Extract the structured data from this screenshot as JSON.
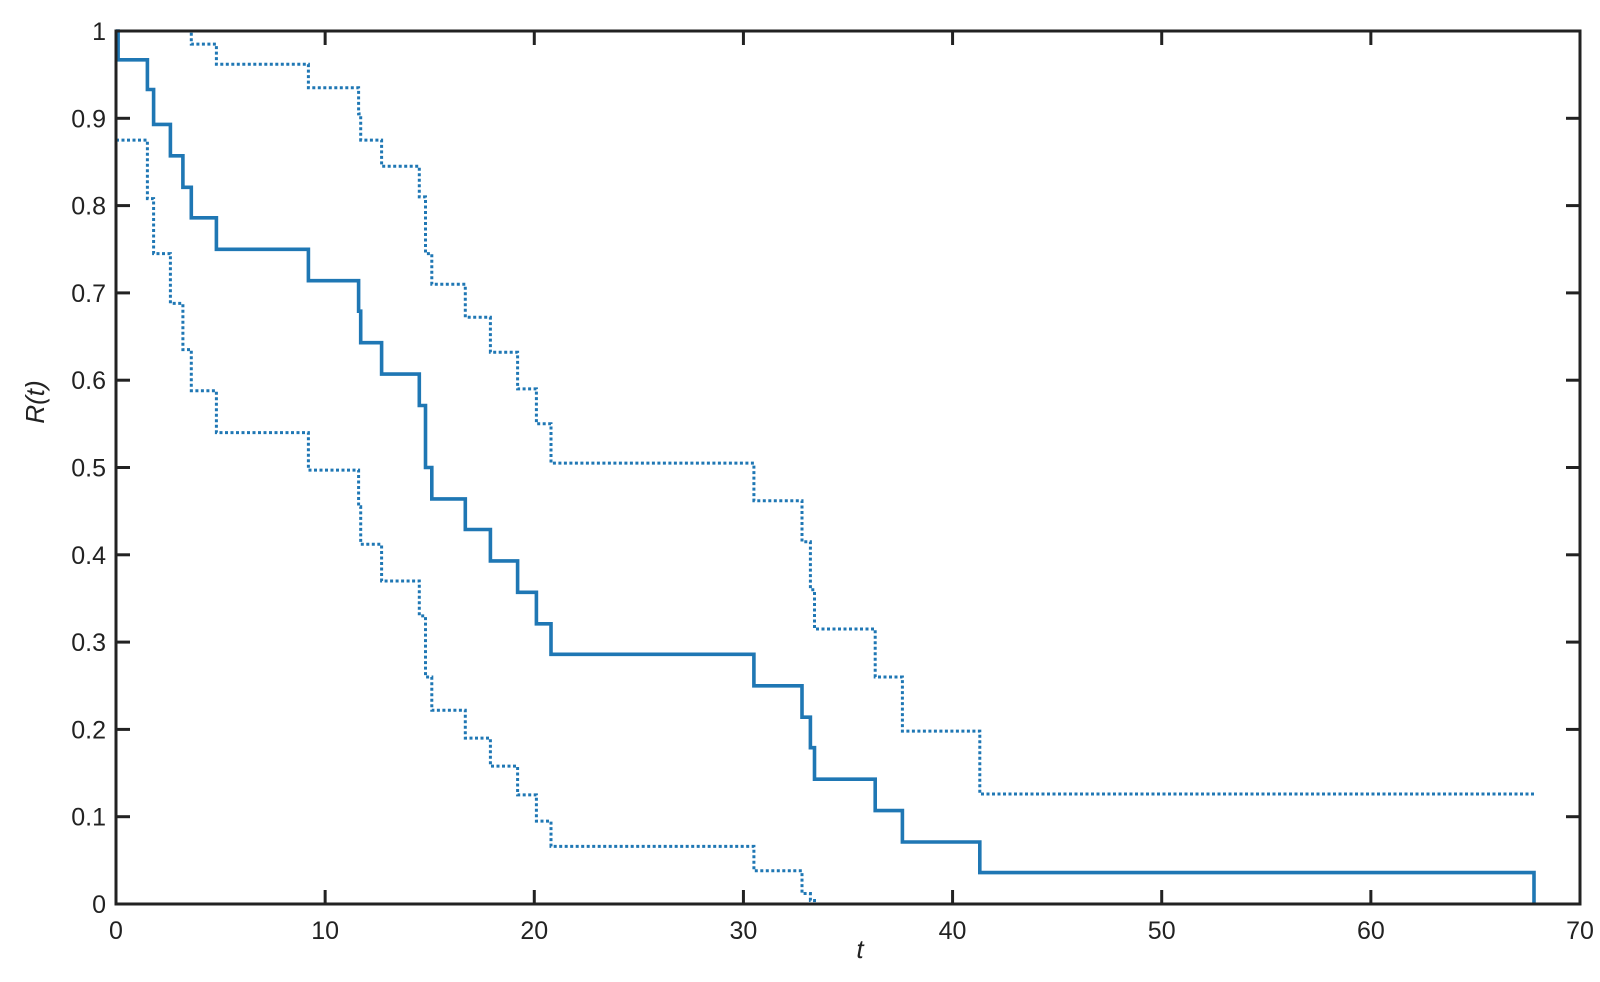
{
  "chart_data": {
    "type": "line",
    "title": "",
    "xlabel": "t",
    "ylabel": "R(t)",
    "xlim": [
      0,
      70
    ],
    "ylim": [
      0,
      1
    ],
    "x_ticks": [
      "0",
      "10",
      "20",
      "30",
      "40",
      "50",
      "60",
      "70"
    ],
    "y_ticks": [
      "0",
      "0.1",
      "0.2",
      "0.3",
      "0.4",
      "0.5",
      "0.6",
      "0.7",
      "0.8",
      "0.9",
      "1"
    ],
    "grid": false,
    "legend": "none",
    "step": true,
    "colors": {
      "series": "#1f77b4",
      "axis": "#222222"
    },
    "series": [
      {
        "style": "solid",
        "x": [
          0,
          0.1,
          1.5,
          1.8,
          2.6,
          3.2,
          3.6,
          4.8,
          9.2,
          11.6,
          11.7,
          12.7,
          14.5,
          14.8,
          15.1,
          16.7,
          17.9,
          19.2,
          20.1,
          20.8,
          30.5,
          32.8,
          33.2,
          33.4,
          36.3,
          37.6,
          41.3,
          67.8,
          67.8
        ],
        "y": [
          1,
          0.967,
          0.933,
          0.893,
          0.857,
          0.821,
          0.786,
          0.75,
          0.714,
          0.679,
          0.643,
          0.607,
          0.571,
          0.5,
          0.464,
          0.429,
          0.393,
          0.357,
          0.321,
          0.286,
          0.25,
          0.214,
          0.179,
          0.143,
          0.107,
          0.071,
          0.036,
          0.036,
          0
        ]
      },
      {
        "style": "dotted",
        "x": [
          0,
          3.6,
          4.8,
          9.2,
          11.6,
          11.7,
          12.7,
          14.5,
          14.8,
          15.1,
          16.7,
          17.9,
          19.2,
          20.1,
          20.8,
          30.5,
          32.8,
          33.2,
          33.4,
          36.3,
          37.6,
          41.3,
          67.8
        ],
        "y": [
          1,
          0.985,
          0.962,
          0.935,
          0.905,
          0.875,
          0.845,
          0.81,
          0.745,
          0.71,
          0.672,
          0.632,
          0.59,
          0.55,
          0.505,
          0.462,
          0.415,
          0.36,
          0.315,
          0.26,
          0.198,
          0.126,
          0.126
        ]
      },
      {
        "style": "dotted",
        "x": [
          0,
          1.5,
          1.8,
          2.6,
          3.2,
          3.6,
          4.8,
          9.2,
          11.6,
          11.7,
          12.7,
          14.5,
          14.8,
          15.1,
          16.7,
          17.9,
          19.2,
          20.1,
          20.8,
          30.5,
          32.8,
          33.2,
          33.4,
          67.8
        ],
        "y": [
          0.875,
          0.808,
          0.745,
          0.688,
          0.635,
          0.588,
          0.54,
          0.497,
          0.455,
          0.412,
          0.37,
          0.33,
          0.26,
          0.222,
          0.19,
          0.158,
          0.125,
          0.095,
          0.066,
          0.038,
          0.012,
          0.004,
          0,
          0
        ]
      }
    ]
  }
}
